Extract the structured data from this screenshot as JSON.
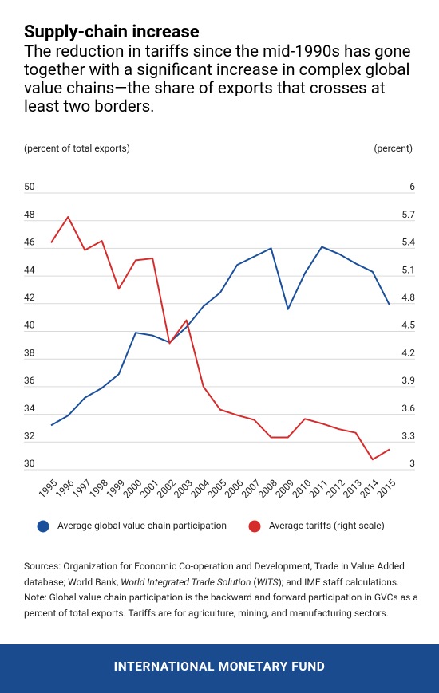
{
  "chart_data": {
    "type": "line",
    "title": "Supply-chain increase",
    "subtitle": "The reduction in tariffs since the mid-1990s has gone together with a significant increase in complex global value chains—the share of exports that crosses at least two borders.",
    "ylabel": "(percent of total exports)",
    "y2label": "(percent)",
    "categories": [
      "1995",
      "1996",
      "1997",
      "1998",
      "1999",
      "2000",
      "2001",
      "2002",
      "2003",
      "2004",
      "2005",
      "2006",
      "2007",
      "2008",
      "2009",
      "2010",
      "2011",
      "2012",
      "2013",
      "2014",
      "2015"
    ],
    "ylim": [
      30,
      50
    ],
    "yticks": [
      30,
      32,
      34,
      36,
      38,
      40,
      42,
      44,
      46,
      48,
      50
    ],
    "y2lim": [
      3,
      6
    ],
    "y2ticks": [
      3,
      3.3,
      3.6,
      3.9,
      4.2,
      4.5,
      4.8,
      5.1,
      5.4,
      5.7,
      6
    ],
    "grid": true,
    "series": [
      {
        "name": "Average global value chain participation",
        "color": "#1a4f9c",
        "values": [
          32.8,
          33.5,
          34.8,
          35.5,
          36.5,
          39.5,
          39.3,
          38.8,
          39.9,
          41.4,
          42.4,
          44.4,
          45.0,
          45.6,
          41.2,
          43.8,
          45.7,
          45.2,
          44.5,
          43.9,
          41.5
        ]
      },
      {
        "name": "Average tariffs (right scale)",
        "color": "#d62b2b",
        "axis": "y2",
        "values": [
          5.4,
          5.68,
          5.32,
          5.42,
          4.9,
          5.21,
          5.23,
          4.31,
          4.56,
          3.84,
          3.59,
          3.53,
          3.48,
          3.29,
          3.29,
          3.49,
          3.44,
          3.38,
          3.34,
          3.05,
          3.16
        ]
      }
    ],
    "sources": [
      "Sources: Organization for Economic Co-operation and Development, Trade in Value Added database; World Bank, ",
      "World Integrated Trade Solution",
      " (",
      "WITS",
      "); and IMF staff calculations."
    ],
    "note": "Note: Global value chain participation is the backward and forward participation in GVCs as a percent of total exports. Tariffs are for agriculture, mining, and manufacturing sectors.",
    "footer": "INTERNATIONAL MONETARY FUND"
  }
}
